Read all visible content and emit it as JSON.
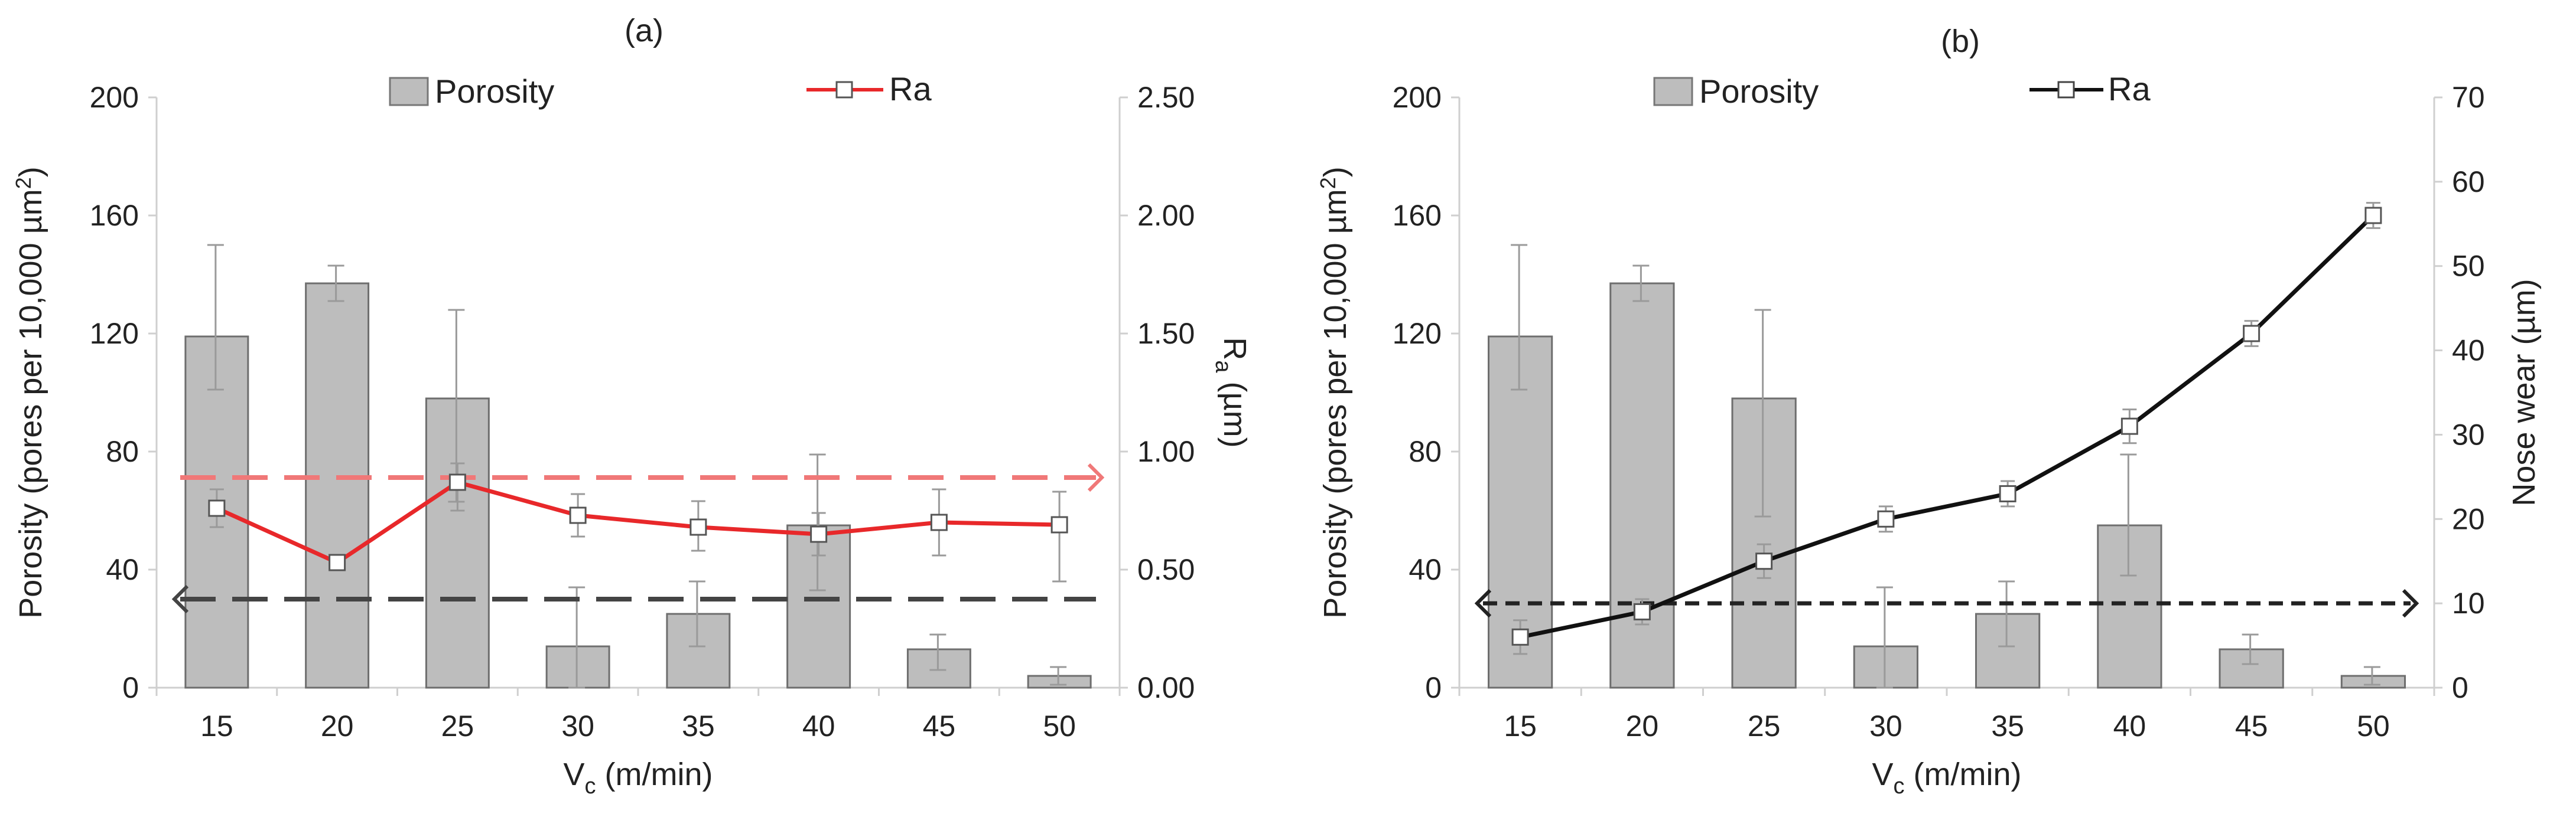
{
  "chart_data": [
    {
      "type": "bar+line",
      "panel_label": "(a)",
      "categories": [
        "15",
        "20",
        "25",
        "30",
        "35",
        "40",
        "45",
        "50"
      ],
      "xlabel_main": "V",
      "xlabel_sub": "c",
      "xlabel_unit": " (m/min)",
      "ylabel_left": "Porosity (pores per 10,000 µm",
      "ylabel_left_sup": "2",
      "ylabel_left_end": ")",
      "ylim_left": [
        0,
        200
      ],
      "yticks_left": [
        "0",
        "40",
        "80",
        "120",
        "160",
        "200"
      ],
      "ylabel_right_main": "R",
      "ylabel_right_sub": "a",
      "ylabel_right_unit": " (µm)",
      "ylim_right": [
        0,
        2.5
      ],
      "yticks_right": [
        "0.00",
        "0.50",
        "1.00",
        "1.50",
        "2.00",
        "2.50"
      ],
      "series": [
        {
          "name": "Porosity",
          "kind": "bar",
          "axis": "left",
          "values": [
            119,
            137,
            98,
            14,
            25,
            55,
            13,
            4
          ],
          "err_low": [
            101,
            131,
            63,
            0,
            14,
            33,
            6,
            1
          ],
          "err_high": [
            150,
            143,
            128,
            34,
            36,
            79,
            18,
            7
          ]
        },
        {
          "name": "Ra",
          "kind": "line",
          "axis": "right",
          "color": "#e8282a",
          "values": [
            0.76,
            0.53,
            0.87,
            0.73,
            0.68,
            0.65,
            0.7,
            0.69
          ],
          "err_low": [
            0.68,
            0.51,
            0.75,
            0.64,
            0.58,
            0.56,
            0.56,
            0.45
          ],
          "err_high": [
            0.84,
            0.55,
            0.95,
            0.82,
            0.79,
            0.74,
            0.84,
            0.83
          ]
        }
      ],
      "reference_arrows": [
        {
          "axis": "right",
          "value": 0.89,
          "direction": "right",
          "color": "#f07878"
        },
        {
          "axis": "left",
          "value": 30,
          "direction": "left",
          "color": "#444444"
        }
      ],
      "legend": [
        "Porosity",
        "Ra"
      ]
    },
    {
      "type": "bar+line",
      "panel_label": "(b)",
      "categories": [
        "15",
        "20",
        "25",
        "30",
        "35",
        "40",
        "45",
        "50"
      ],
      "xlabel_main": "V",
      "xlabel_sub": "c",
      "xlabel_unit": " (m/min)",
      "ylabel_left": "Porosity (pores per 10,000 µm",
      "ylabel_left_sup": "2",
      "ylabel_left_end": ")",
      "ylim_left": [
        0,
        200
      ],
      "yticks_left": [
        "0",
        "40",
        "80",
        "120",
        "160",
        "200"
      ],
      "ylabel_right_main": "Nose wear (µm)",
      "ylim_right": [
        0,
        70
      ],
      "yticks_right": [
        "0",
        "10",
        "20",
        "30",
        "40",
        "50",
        "60",
        "70"
      ],
      "series": [
        {
          "name": "Porosity",
          "kind": "bar",
          "axis": "left",
          "values": [
            119,
            137,
            98,
            14,
            25,
            55,
            13,
            4
          ],
          "err_low": [
            101,
            131,
            58,
            0,
            14,
            38,
            8,
            1
          ],
          "err_high": [
            150,
            143,
            128,
            34,
            36,
            79,
            18,
            7
          ]
        },
        {
          "name": "Ra",
          "kind": "line",
          "axis": "right",
          "color": "#111111",
          "values": [
            6,
            9,
            15,
            20,
            23,
            31,
            42,
            56
          ],
          "err_low": [
            4,
            7.5,
            13,
            18.5,
            21.5,
            29,
            40.5,
            54.5
          ],
          "err_high": [
            8,
            10.5,
            17,
            21.5,
            24.5,
            33,
            43.5,
            57.5
          ]
        }
      ],
      "reference_arrows": [
        {
          "axis": "right",
          "value": 10,
          "direction": "both",
          "color": "#222222"
        }
      ],
      "legend": [
        "Porosity",
        "Ra"
      ]
    }
  ]
}
